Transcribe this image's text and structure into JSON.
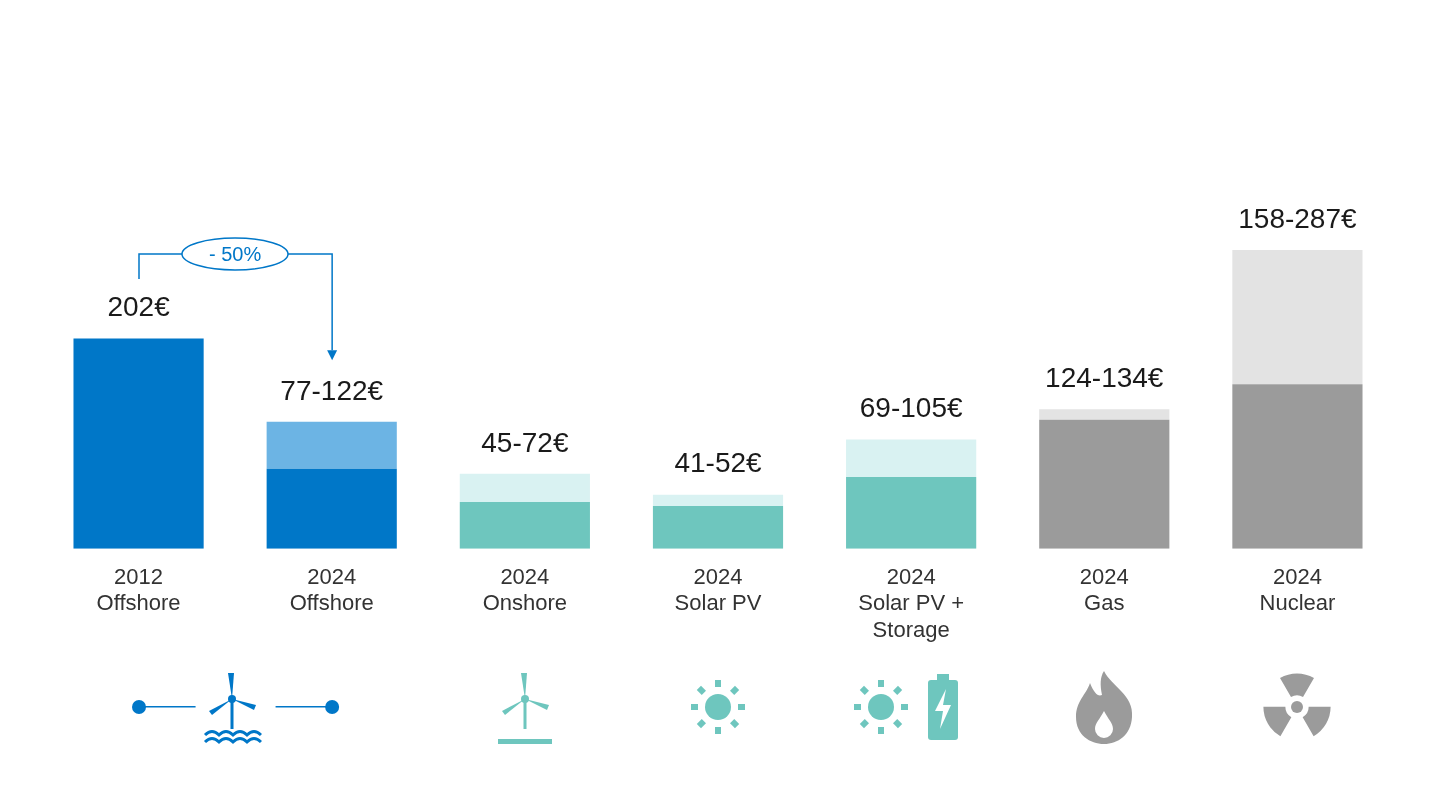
{
  "chart_data": {
    "type": "bar",
    "stacked": true,
    "categories": [
      "2012\nOffshore",
      "2024\nOffshore",
      "2024\nOnshore",
      "2024\nSolar PV",
      "2024\nSolar PV +\nStorage",
      "2024\nGas",
      "2024\nNuclear"
    ],
    "series": [
      {
        "colors": [
          "#0077c8",
          "#0077c8",
          "#6ec6be",
          "#6ec6be",
          "#6ec6be",
          "#9b9b9b",
          "#9b9b9b"
        ],
        "values": [
          202,
          77,
          45,
          41,
          69,
          124,
          158
        ],
        "value_labels": [
          "202€",
          null,
          null,
          null,
          null,
          null,
          null
        ]
      },
      {
        "colors": [
          "#6cb4e4",
          "#6cb4e4",
          "#d9f2f2",
          "#d9f2f2",
          "#d9f2f2",
          "#e3e3e3",
          "#e3e3e3"
        ],
        "values": [
          null,
          45,
          27,
          11,
          36,
          10,
          129
        ],
        "value_labels": [
          null,
          "77-122€",
          "45-72€",
          "41-52€",
          "69-105€",
          "124-134€",
          "158-287€"
        ]
      }
    ],
    "annotations": [
      "- 50%"
    ],
    "grid": false,
    "legend": false,
    "tick_labels": "x"
  }
}
